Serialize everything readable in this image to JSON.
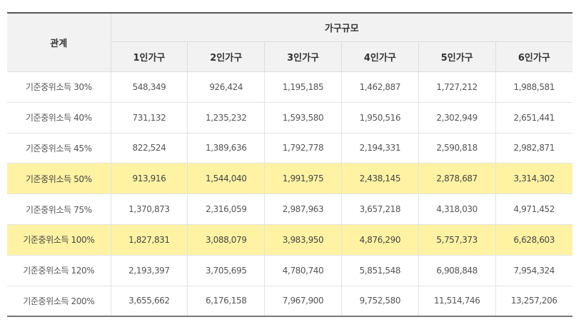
{
  "table": {
    "header": {
      "relation_label": "관계",
      "group_label": "가구규모",
      "columns": [
        "1인가구",
        "2인가구",
        "3인가구",
        "4인가구",
        "5인가구",
        "6인가구"
      ]
    },
    "highlight_color": "#fff3a3",
    "rows": [
      {
        "label": "기준중위소득 30%",
        "values": [
          "548,349",
          "926,424",
          "1,195,185",
          "1,462,887",
          "1,727,212",
          "1,988,581"
        ],
        "highlighted": false
      },
      {
        "label": "기준중위소득 40%",
        "values": [
          "731,132",
          "1,235,232",
          "1,593,580",
          "1,950,516",
          "2,302,949",
          "2,651,441"
        ],
        "highlighted": false
      },
      {
        "label": "기준중위소득 45%",
        "values": [
          "822,524",
          "1,389,636",
          "1,792,778",
          "2,194,331",
          "2,590,818",
          "2,982,871"
        ],
        "highlighted": false
      },
      {
        "label": "기준중위소득 50%",
        "values": [
          "913,916",
          "1,544,040",
          "1,991,975",
          "2,438,145",
          "2,878,687",
          "3,314,302"
        ],
        "highlighted": true
      },
      {
        "label": "기준중위소득 75%",
        "values": [
          "1,370,873",
          "2,316,059",
          "2,987,963",
          "3,657,218",
          "4,318,030",
          "4,971,452"
        ],
        "highlighted": false
      },
      {
        "label": "기준중위소득 100%",
        "values": [
          "1,827,831",
          "3,088,079",
          "3,983,950",
          "4,876,290",
          "5,757,373",
          "6,628,603"
        ],
        "highlighted": true
      },
      {
        "label": "기준중위소득 120%",
        "values": [
          "2,193,397",
          "3,705,695",
          "4,780,740",
          "5,851,548",
          "6,908,848",
          "7,954,324"
        ],
        "highlighted": false
      },
      {
        "label": "기준중위소득 200%",
        "values": [
          "3,655,662",
          "6,176,158",
          "7,967,900",
          "9,752,580",
          "11,514,746",
          "13,257,206"
        ],
        "highlighted": false
      }
    ]
  }
}
